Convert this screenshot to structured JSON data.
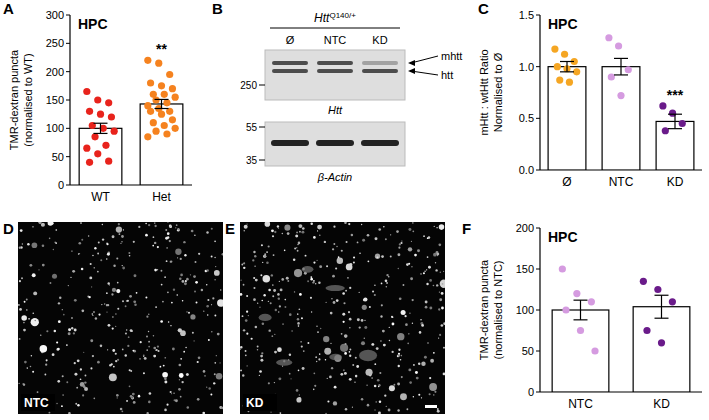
{
  "chart_data": [
    {
      "panel": "A",
      "type": "bar",
      "title": "HPC",
      "y_label": [
        "TMR-dextran puncta",
        "(normalised to WT)"
      ],
      "categories": [
        "WT",
        "Het"
      ],
      "values": [
        100,
        143
      ],
      "errors": [
        9,
        8
      ],
      "colors": [
        "#e8231c",
        "#f5821f"
      ],
      "points": [
        [
          165,
          150,
          145,
          130,
          125,
          120,
          105,
          100,
          95,
          85,
          70,
          65,
          55,
          42,
          40
        ],
        [
          220,
          215,
          195,
          180,
          175,
          170,
          160,
          160,
          155,
          150,
          145,
          140,
          135,
          130,
          130,
          125,
          115,
          110,
          105,
          100,
          95,
          90,
          85
        ]
      ],
      "annotations": [
        {
          "text": "**",
          "category": 1
        }
      ],
      "ylim": [
        0,
        300
      ],
      "yticks": [
        0,
        50,
        100,
        150,
        200,
        250,
        300
      ]
    },
    {
      "panel": "C",
      "type": "bar",
      "title": "HPC",
      "y_label": [
        "mHtt : wtHtt Ratio",
        "Normalised to Ø"
      ],
      "categories": [
        "Ø",
        "NTC",
        "KD"
      ],
      "values": [
        1.0,
        1.0,
        0.47
      ],
      "errors": [
        0.05,
        0.08,
        0.07
      ],
      "colors": [
        "#f5a623",
        "#d59be0",
        "#6a1b8a"
      ],
      "points": [
        [
          1.17,
          1.12,
          1.05,
          1.0,
          0.98,
          0.95,
          0.87,
          0.85
        ],
        [
          1.28,
          1.2,
          0.97,
          0.9,
          0.72
        ],
        [
          0.62,
          0.55,
          0.45,
          0.38
        ]
      ],
      "annotations": [
        {
          "text": "***",
          "category": 2
        }
      ],
      "ylim": [
        0,
        1.5
      ],
      "yticks": [
        {
          "value": 0,
          "label": "0.0"
        },
        0.5,
        {
          "value": 1,
          "label": "1.0"
        },
        1.5
      ]
    },
    {
      "panel": "F",
      "type": "bar",
      "title": "HPC",
      "y_label": [
        "TMR-dextran puncta",
        "(normalised to NTC)"
      ],
      "categories": [
        "NTC",
        "KD"
      ],
      "values": [
        100,
        104
      ],
      "errors": [
        12,
        14
      ],
      "colors": [
        "#d59be0",
        "#6a1b8a"
      ],
      "points": [
        [
          150,
          120,
          110,
          100,
          75,
          50
        ],
        [
          135,
          125,
          110,
          75,
          60
        ]
      ],
      "ylim": [
        0,
        200
      ],
      "yticks": [
        0,
        50,
        100,
        150,
        200
      ]
    }
  ],
  "blot": {
    "panel": "B",
    "genotype": "Htt",
    "genotype_sup": "Q140/+",
    "lanes": [
      "Ø",
      "NTC",
      "KD"
    ],
    "bands": [
      "mhtt",
      "htt"
    ],
    "blots": [
      {
        "label": "Htt",
        "markers": [
          250
        ]
      },
      {
        "label": "β-Actin",
        "markers": [
          55,
          35
        ]
      }
    ]
  },
  "images": [
    {
      "panel": "D",
      "label": "NTC"
    },
    {
      "panel": "E",
      "label": "KD"
    }
  ]
}
